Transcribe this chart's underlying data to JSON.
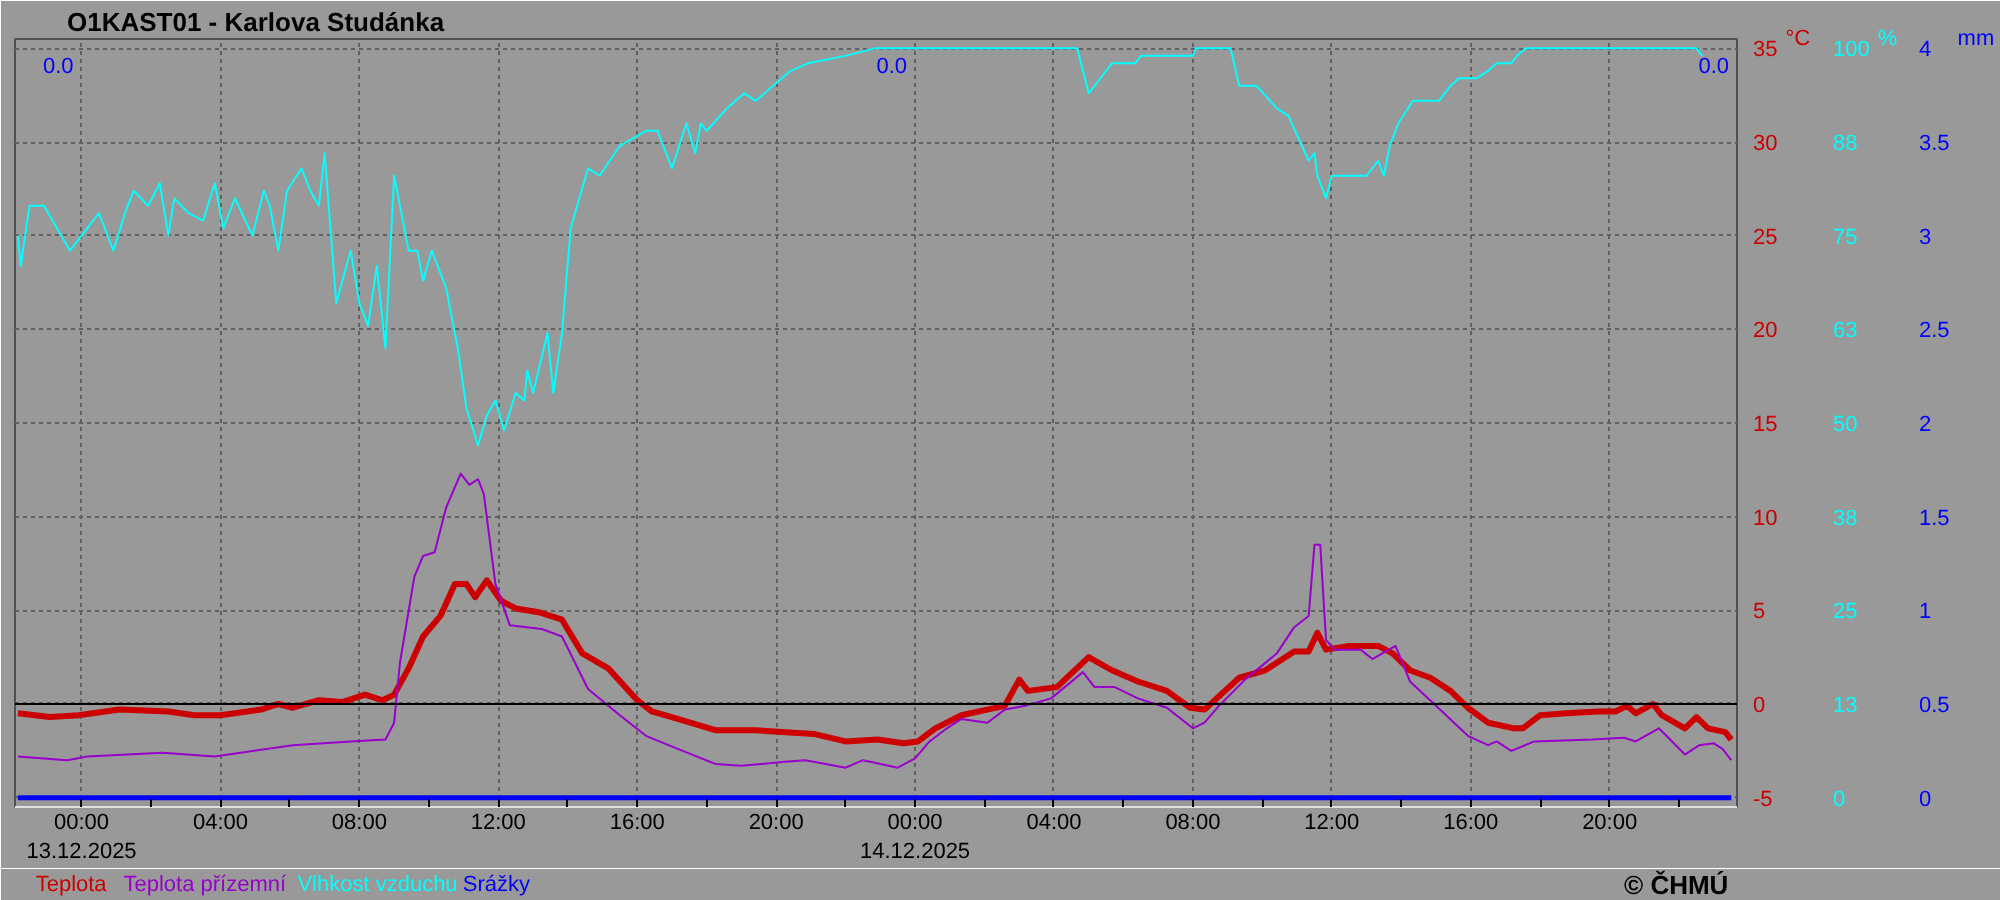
{
  "chart_data": {
    "type": "line",
    "title": "O1KAST01 - Karlova Studánka",
    "ylabel": "°C",
    "y2label": "%",
    "y3label": "mm",
    "xlim": [
      "2025-12-12T22:05",
      "2025-12-14T23:40"
    ],
    "xticks": [
      {
        "value": "2025-12-13T00:00",
        "label": "00:00\n13.12.2025"
      },
      {
        "value": "2025-12-13T02:00",
        "label": null
      },
      {
        "value": "2025-12-13T04:00",
        "label": "04:00"
      },
      {
        "value": "2025-12-13T06:00",
        "label": null
      },
      {
        "value": "2025-12-13T08:00",
        "label": "08:00"
      },
      {
        "value": "2025-12-13T10:00",
        "label": null
      },
      {
        "value": "2025-12-13T12:00",
        "label": "12:00"
      },
      {
        "value": "2025-12-13T14:00",
        "label": null
      },
      {
        "value": "2025-12-13T16:00",
        "label": "16:00"
      },
      {
        "value": "2025-12-13T18:00",
        "label": null
      },
      {
        "value": "2025-12-13T20:00",
        "label": "20:00"
      },
      {
        "value": "2025-12-13T22:00",
        "label": null
      },
      {
        "value": "2025-12-14T00:00",
        "label": "00:00\n14.12.2025"
      },
      {
        "value": "2025-12-14T02:00",
        "label": null
      },
      {
        "value": "2025-12-14T04:00",
        "label": "04:00"
      },
      {
        "value": "2025-12-14T06:00",
        "label": null
      },
      {
        "value": "2025-12-14T08:00",
        "label": "08:00"
      },
      {
        "value": "2025-12-14T10:00",
        "label": null
      },
      {
        "value": "2025-12-14T12:00",
        "label": "12:00"
      },
      {
        "value": "2025-12-14T14:00",
        "label": null
      },
      {
        "value": "2025-12-14T16:00",
        "label": "16:00"
      },
      {
        "value": "2025-12-14T18:00",
        "label": null
      },
      {
        "value": "2025-12-14T20:00",
        "label": "20:00"
      },
      {
        "value": "2025-12-14T22:00",
        "label": null
      }
    ],
    "ylim": [
      -5.5,
      35.5
    ],
    "yticks": [
      -5,
      0,
      5,
      10,
      15,
      20,
      25,
      30,
      35
    ],
    "y2lim": [
      -1.25,
      101.25
    ],
    "y2ticks": [
      0,
      {
        "value": 12.5,
        "label": "13"
      },
      25,
      {
        "value": 37.5,
        "label": "38"
      },
      50,
      {
        "value": 62.5,
        "label": "63"
      },
      75,
      {
        "value": 87.5,
        "label": "88"
      },
      100
    ],
    "y3lim": [
      -0.05,
      4.05
    ],
    "y3ticks": [
      0,
      0.5,
      1,
      1.5,
      2,
      2.5,
      3,
      3.5,
      4
    ],
    "grid": true,
    "ref_lines": [
      {
        "axis": "y",
        "value": 0,
        "color": "#000000"
      }
    ],
    "annotations": [
      "0.0",
      "0.0",
      "0.0",
      "© ČHMÚ"
    ],
    "series": [
      {
        "name": "Teplota",
        "color": "#cc0000",
        "x": [
          "2025-12-12T22:10",
          "2025-12-12T23:05",
          "2025-12-12T23:55",
          "2025-12-13T01:05",
          "2025-12-13T02:30",
          "2025-12-13T03:15",
          "2025-12-13T04:00",
          "2025-12-13T05:10",
          "2025-12-13T05:40",
          "2025-12-13T06:05",
          "2025-12-13T06:50",
          "2025-12-13T07:30",
          "2025-12-13T08:10",
          "2025-12-13T08:40",
          "2025-12-13T09:00",
          "2025-12-13T09:25",
          "2025-12-13T09:50",
          "2025-12-13T10:20",
          "2025-12-13T10:45",
          "2025-12-13T11:05",
          "2025-12-13T11:20",
          "2025-12-13T11:40",
          "2025-12-13T12:05",
          "2025-12-13T12:30",
          "2025-12-13T13:10",
          "2025-12-13T13:50",
          "2025-12-13T14:25",
          "2025-12-13T15:10",
          "2025-12-13T16:00",
          "2025-12-13T16:25",
          "2025-12-13T17:10",
          "2025-12-13T18:15",
          "2025-12-13T19:25",
          "2025-12-13T20:10",
          "2025-12-13T21:05",
          "2025-12-13T22:00",
          "2025-12-13T22:55",
          "2025-12-13T23:40",
          "2025-12-14T00:05",
          "2025-12-14T00:35",
          "2025-12-14T01:20",
          "2025-12-14T02:05",
          "2025-12-14T02:35",
          "2025-12-14T03:00",
          "2025-12-14T03:15",
          "2025-12-14T04:05",
          "2025-12-14T05:00",
          "2025-12-14T05:40",
          "2025-12-14T06:25",
          "2025-12-14T07:15",
          "2025-12-14T07:55",
          "2025-12-14T08:20",
          "2025-12-14T09:20",
          "2025-12-14T10:05",
          "2025-12-14T10:25",
          "2025-12-14T10:55",
          "2025-12-14T11:20",
          "2025-12-14T11:35",
          "2025-12-14T11:50",
          "2025-12-14T12:30",
          "2025-12-14T13:20",
          "2025-12-14T13:45",
          "2025-12-14T14:15",
          "2025-12-14T14:50",
          "2025-12-14T15:25",
          "2025-12-14T15:55",
          "2025-12-14T16:30",
          "2025-12-14T17:15",
          "2025-12-14T17:30",
          "2025-12-14T18:00",
          "2025-12-14T18:45",
          "2025-12-14T19:40",
          "2025-12-14T20:10",
          "2025-12-14T20:30",
          "2025-12-14T20:45",
          "2025-12-14T21:15",
          "2025-12-14T21:30",
          "2025-12-14T22:10",
          "2025-12-14T22:30",
          "2025-12-14T22:50",
          "2025-12-14T23:20",
          "2025-12-14T23:30"
        ],
        "values": [
          -0.5,
          -0.7,
          -0.6,
          -0.3,
          -0.4,
          -0.6,
          -0.6,
          -0.3,
          0.0,
          -0.2,
          0.2,
          0.1,
          0.5,
          0.2,
          0.5,
          1.9,
          3.6,
          4.7,
          6.4,
          6.4,
          5.7,
          6.6,
          5.5,
          5.1,
          4.9,
          4.5,
          2.7,
          1.9,
          0.2,
          -0.4,
          -0.8,
          -1.4,
          -1.4,
          -1.5,
          -1.6,
          -2.0,
          -1.9,
          -2.1,
          -2.0,
          -1.3,
          -0.6,
          -0.3,
          -0.1,
          1.3,
          0.7,
          0.9,
          2.5,
          1.8,
          1.2,
          0.7,
          -0.2,
          -0.3,
          1.4,
          1.8,
          2.2,
          2.8,
          2.8,
          3.8,
          2.9,
          3.1,
          3.1,
          2.7,
          1.8,
          1.4,
          0.7,
          -0.2,
          -1.0,
          -1.3,
          -1.3,
          -0.6,
          -0.5,
          -0.4,
          -0.4,
          -0.1,
          -0.5,
          0.0,
          -0.6,
          -1.3,
          -0.7,
          -1.3,
          -1.5,
          -1.9
        ]
      },
      {
        "name": "Teplota přízemní",
        "color": "#9900cc",
        "x": [
          "2025-12-12T22:10",
          "2025-12-12T23:35",
          "2025-12-13T00:10",
          "2025-12-13T02:20",
          "2025-12-13T03:50",
          "2025-12-13T06:05",
          "2025-12-13T07:45",
          "2025-12-13T08:45",
          "2025-12-13T09:00",
          "2025-12-13T09:10",
          "2025-12-13T09:35",
          "2025-12-13T09:50",
          "2025-12-13T10:10",
          "2025-12-13T10:30",
          "2025-12-13T10:55",
          "2025-12-13T11:10",
          "2025-12-13T11:25",
          "2025-12-13T11:35",
          "2025-12-13T11:55",
          "2025-12-13T12:20",
          "2025-12-13T13:15",
          "2025-12-13T13:50",
          "2025-12-13T14:35",
          "2025-12-13T15:30",
          "2025-12-13T16:15",
          "2025-12-13T17:10",
          "2025-12-13T18:15",
          "2025-12-13T19:00",
          "2025-12-13T20:10",
          "2025-12-13T20:50",
          "2025-12-13T22:00",
          "2025-12-13T22:30",
          "2025-12-13T23:30",
          "2025-12-14T00:00",
          "2025-12-14T00:25",
          "2025-12-14T00:55",
          "2025-12-14T01:20",
          "2025-12-14T02:05",
          "2025-12-14T02:35",
          "2025-12-14T03:10",
          "2025-12-14T03:55",
          "2025-12-14T04:50",
          "2025-12-14T05:10",
          "2025-12-14T05:45",
          "2025-12-14T06:25",
          "2025-12-14T07:15",
          "2025-12-14T08:00",
          "2025-12-14T08:20",
          "2025-12-14T08:45",
          "2025-12-14T09:30",
          "2025-12-14T10:25",
          "2025-12-14T10:55",
          "2025-12-14T11:20",
          "2025-12-14T11:30",
          "2025-12-14T11:40",
          "2025-12-14T11:50",
          "2025-12-14T12:05",
          "2025-12-14T12:50",
          "2025-12-14T13:10",
          "2025-12-14T13:50",
          "2025-12-14T14:15",
          "2025-12-14T15:00",
          "2025-12-14T15:55",
          "2025-12-14T16:30",
          "2025-12-14T16:45",
          "2025-12-14T17:10",
          "2025-12-14T17:50",
          "2025-12-14T19:30",
          "2025-12-14T20:25",
          "2025-12-14T20:45",
          "2025-12-14T21:25",
          "2025-12-14T22:10",
          "2025-12-14T22:35",
          "2025-12-14T23:00",
          "2025-12-14T23:15",
          "2025-12-14T23:30"
        ],
        "values": [
          -2.8,
          -3.0,
          -2.8,
          -2.6,
          -2.8,
          -2.2,
          -2.0,
          -1.9,
          -1.0,
          2.2,
          6.8,
          7.9,
          8.1,
          10.5,
          12.3,
          11.7,
          12.0,
          11.2,
          6.4,
          4.2,
          4.0,
          3.6,
          0.8,
          -0.6,
          -1.7,
          -2.4,
          -3.2,
          -3.3,
          -3.1,
          -3.0,
          -3.4,
          -3.0,
          -3.4,
          -2.9,
          -2.0,
          -1.3,
          -0.8,
          -1.0,
          -0.3,
          -0.1,
          0.3,
          1.7,
          0.9,
          0.9,
          0.3,
          -0.2,
          -1.3,
          -1.0,
          -0.1,
          1.3,
          2.7,
          4.1,
          4.7,
          8.5,
          8.5,
          3.4,
          2.9,
          2.9,
          2.4,
          3.1,
          1.2,
          -0.1,
          -1.7,
          -2.2,
          -2.0,
          -2.5,
          -2.0,
          -1.9,
          -1.8,
          -2.0,
          -1.3,
          -2.7,
          -2.2,
          -2.1,
          -2.4,
          -3.0
        ]
      },
      {
        "name": "Vlhkost vzduchu",
        "color": "#00ffff",
        "axis": "y2",
        "x": [
          "2025-12-12T22:10",
          "2025-12-12T22:15",
          "2025-12-12T22:30",
          "2025-12-12T22:55",
          "2025-12-12T23:40",
          "2025-12-13T00:00",
          "2025-12-13T00:30",
          "2025-12-13T00:55",
          "2025-12-13T01:15",
          "2025-12-13T01:30",
          "2025-12-13T01:55",
          "2025-12-13T02:15",
          "2025-12-13T02:30",
          "2025-12-13T02:40",
          "2025-12-13T03:05",
          "2025-12-13T03:30",
          "2025-12-13T03:50",
          "2025-12-13T04:05",
          "2025-12-13T04:25",
          "2025-12-13T04:55",
          "2025-12-13T05:15",
          "2025-12-13T05:25",
          "2025-12-13T05:40",
          "2025-12-13T05:55",
          "2025-12-13T06:20",
          "2025-12-13T06:35",
          "2025-12-13T06:50",
          "2025-12-13T07:00",
          "2025-12-13T07:20",
          "2025-12-13T07:45",
          "2025-12-13T08:00",
          "2025-12-13T08:15",
          "2025-12-13T08:30",
          "2025-12-13T08:45",
          "2025-12-13T09:00",
          "2025-12-13T09:25",
          "2025-12-13T09:40",
          "2025-12-13T09:50",
          "2025-12-13T10:05",
          "2025-12-13T10:30",
          "2025-12-13T10:50",
          "2025-12-13T11:05",
          "2025-12-13T11:25",
          "2025-12-13T11:40",
          "2025-12-13T11:55",
          "2025-12-13T12:10",
          "2025-12-13T12:30",
          "2025-12-13T12:45",
          "2025-12-13T12:50",
          "2025-12-13T13:00",
          "2025-12-13T13:25",
          "2025-12-13T13:35",
          "2025-12-13T13:50",
          "2025-12-13T14:05",
          "2025-12-13T14:35",
          "2025-12-13T14:55",
          "2025-12-13T15:30",
          "2025-12-13T16:15",
          "2025-12-13T16:35",
          "2025-12-13T17:00",
          "2025-12-13T17:25",
          "2025-12-13T17:40",
          "2025-12-13T17:50",
          "2025-12-13T18:00",
          "2025-12-13T18:35",
          "2025-12-13T19:05",
          "2025-12-13T19:25",
          "2025-12-13T19:55",
          "2025-12-13T20:25",
          "2025-12-13T20:55",
          "2025-12-13T22:00",
          "2025-12-13T22:50",
          "2025-12-14T04:40",
          "2025-12-14T05:00",
          "2025-12-14T05:40",
          "2025-12-14T06:20",
          "2025-12-14T06:30",
          "2025-12-14T08:00",
          "2025-12-14T08:05",
          "2025-12-14T09:05",
          "2025-12-14T09:20",
          "2025-12-14T09:50",
          "2025-12-14T10:25",
          "2025-12-14T10:45",
          "2025-12-14T11:20",
          "2025-12-14T11:30",
          "2025-12-14T11:35",
          "2025-12-14T11:50",
          "2025-12-14T12:00",
          "2025-12-14T13:00",
          "2025-12-14T13:20",
          "2025-12-14T13:30",
          "2025-12-14T13:40",
          "2025-12-14T13:55",
          "2025-12-14T14:20",
          "2025-12-14T15:05",
          "2025-12-14T15:25",
          "2025-12-14T15:40",
          "2025-12-14T16:10",
          "2025-12-14T16:30",
          "2025-12-14T16:45",
          "2025-12-14T17:10",
          "2025-12-14T17:20",
          "2025-12-14T17:35",
          "2025-12-14T22:30",
          "2025-12-14T22:40"
        ],
        "values": [
          75,
          71,
          79,
          79,
          73,
          75,
          78,
          73,
          78,
          81,
          79,
          82,
          75,
          80,
          78,
          77,
          82,
          76,
          80,
          75,
          81,
          79,
          73,
          81,
          84,
          81,
          79,
          86,
          66,
          73,
          66,
          63,
          71,
          60,
          83,
          73,
          73,
          69,
          73,
          68,
          60,
          52,
          47,
          51,
          53,
          49,
          54,
          53,
          57,
          54,
          62,
          54,
          62,
          76,
          84,
          83,
          87,
          89,
          89,
          84,
          90,
          86,
          90,
          89,
          92,
          94,
          93,
          95,
          97,
          98,
          99,
          100,
          100,
          94,
          98,
          98,
          99,
          99,
          100,
          100,
          95,
          95,
          92,
          91,
          85,
          86,
          83,
          80,
          83,
          83,
          85,
          83,
          87,
          90,
          93,
          93,
          95,
          96,
          96,
          97,
          98,
          98,
          99,
          100,
          100,
          99
        ]
      },
      {
        "name": "Srážky",
        "color": "#0000ff",
        "axis": "y3",
        "x": [
          "2025-12-12T22:10",
          "2025-12-14T23:30"
        ],
        "values": [
          0,
          0
        ]
      }
    ]
  }
}
